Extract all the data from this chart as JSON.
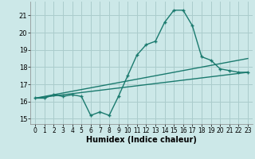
{
  "title": "",
  "xlabel": "Humidex (Indice chaleur)",
  "xlim": [
    -0.5,
    23.5
  ],
  "ylim": [
    14.7,
    21.8
  ],
  "yticks": [
    15,
    16,
    17,
    18,
    19,
    20,
    21
  ],
  "xticks": [
    0,
    1,
    2,
    3,
    4,
    5,
    6,
    7,
    8,
    9,
    10,
    11,
    12,
    13,
    14,
    15,
    16,
    17,
    18,
    19,
    20,
    21,
    22,
    23
  ],
  "bg_color": "#cce8e8",
  "grid_color": "#aacccc",
  "line_color": "#1a7a6e",
  "series1_x": [
    0,
    1,
    2,
    3,
    4,
    5,
    6,
    7,
    8,
    9,
    10,
    11,
    12,
    13,
    14,
    15,
    16,
    17,
    18,
    19,
    20,
    21,
    22,
    23
  ],
  "series1_y": [
    16.2,
    16.2,
    16.4,
    16.3,
    16.4,
    16.3,
    15.2,
    15.4,
    15.2,
    16.3,
    17.5,
    18.7,
    19.3,
    19.5,
    20.6,
    21.3,
    21.3,
    20.4,
    18.6,
    18.4,
    17.9,
    17.8,
    17.7,
    17.7
  ],
  "series2_x": [
    0,
    23
  ],
  "series2_y": [
    16.2,
    17.7
  ],
  "series3_x": [
    0,
    23
  ],
  "series3_y": [
    16.2,
    18.5
  ]
}
